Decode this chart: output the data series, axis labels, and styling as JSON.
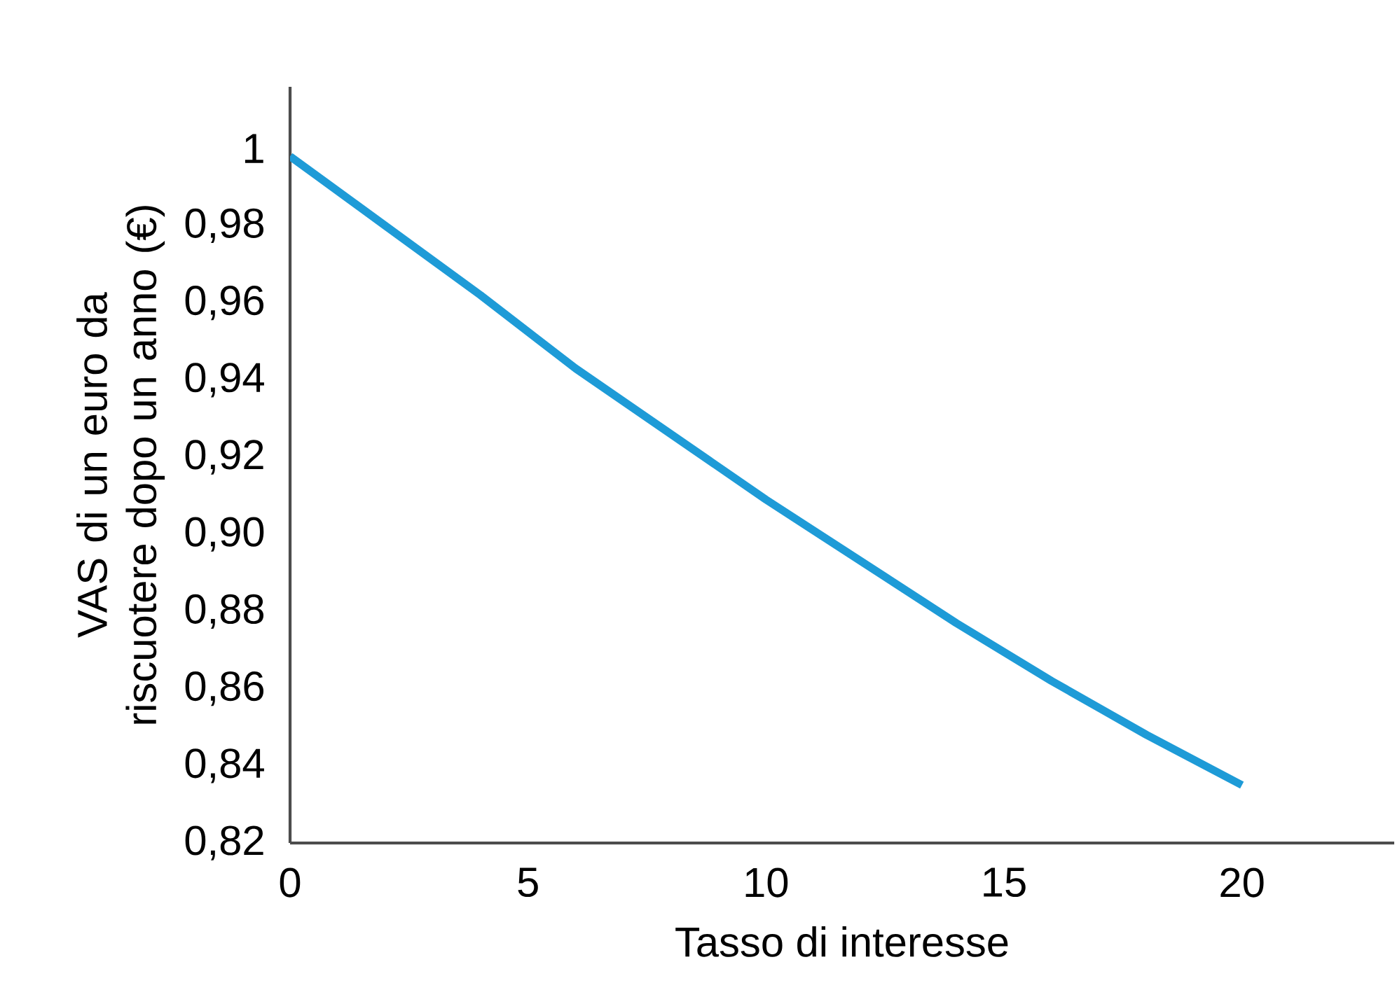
{
  "chart_data": {
    "type": "line",
    "xlabel": "Tasso di interesse",
    "ylabel": "VAS di un euro da riscuotere dopo un anno (€)",
    "x": [
      0,
      2,
      4,
      6,
      8,
      10,
      12,
      14,
      16,
      18,
      20
    ],
    "series": [
      {
        "color": "#1e9bd7",
        "values": [
          0.998,
          0.98,
          0.962,
          0.943,
          0.926,
          0.909,
          0.893,
          0.877,
          0.862,
          0.848,
          0.835
        ]
      }
    ],
    "xlim": [
      0,
      23.2
    ],
    "ylim": [
      0.82,
      1.016
    ],
    "xticks": [
      0,
      5,
      10,
      15,
      20
    ],
    "yticks": [
      {
        "value": 0.82,
        "label": "0,82"
      },
      {
        "value": 0.84,
        "label": "0,84"
      },
      {
        "value": 0.86,
        "label": "0,86"
      },
      {
        "value": 0.88,
        "label": "0,88"
      },
      {
        "value": 0.9,
        "label": "0,90"
      },
      {
        "value": 0.92,
        "label": "0,92"
      },
      {
        "value": 0.94,
        "label": "0,94"
      },
      {
        "value": 0.96,
        "label": "0,96"
      },
      {
        "value": 0.98,
        "label": "0,98"
      },
      {
        "value": 1,
        "label": "1"
      }
    ],
    "grid": false,
    "marker": "none",
    "line_style": "solid"
  }
}
